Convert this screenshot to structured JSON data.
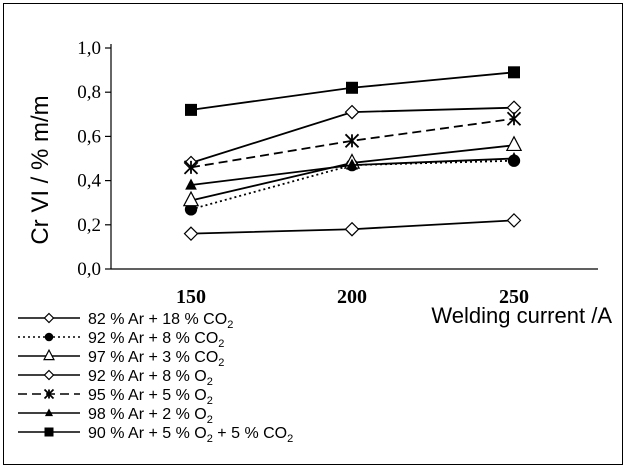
{
  "chart_data": {
    "type": "line",
    "xlabel": "Welding current /A",
    "ylabel": "Cr VI / % m/m",
    "x": [
      150,
      200,
      250
    ],
    "x_tick_labels": [
      "150",
      "200",
      "250"
    ],
    "ylim": [
      0,
      1.0
    ],
    "y_ticks": [
      0.0,
      0.2,
      0.4,
      0.6,
      0.8,
      1.0
    ],
    "y_tick_labels": [
      "0,0",
      "0,2",
      "0,4",
      "0,6",
      "0,8",
      "1,0"
    ],
    "grid": false,
    "legend_position": "bottom-left",
    "series": [
      {
        "name": "82 % Ar + 18 % CO",
        "sub": "2",
        "suffix": "",
        "marker": "diamond-open",
        "dash": "solid",
        "values": [
          0.16,
          0.18,
          0.22
        ]
      },
      {
        "name": "92 % Ar + 8 % CO",
        "sub": "2",
        "suffix": "",
        "marker": "circle-filled",
        "dash": "dotted",
        "values": [
          0.27,
          0.47,
          0.49
        ]
      },
      {
        "name": "97 % Ar + 3 % CO",
        "sub": "2",
        "suffix": "",
        "marker": "triangle-open",
        "dash": "solid",
        "values": [
          0.31,
          0.48,
          0.56
        ]
      },
      {
        "name": "92 % Ar + 8 % O",
        "sub": "2",
        "suffix": "",
        "marker": "diamond-open",
        "dash": "solid",
        "values": [
          0.48,
          0.71,
          0.73
        ]
      },
      {
        "name": "95 % Ar + 5 % O",
        "sub": "2",
        "suffix": "",
        "marker": "star",
        "dash": "dashed",
        "values": [
          0.46,
          0.58,
          0.68
        ]
      },
      {
        "name": "98 % Ar + 2 % O",
        "sub": "2",
        "suffix": "",
        "marker": "triangle-filled",
        "dash": "solid",
        "values": [
          0.38,
          0.47,
          0.5
        ]
      },
      {
        "name": "90 % Ar + 5 % O",
        "sub": "2",
        "suffix": " + 5 % CO",
        "suffix_sub": "2",
        "marker": "square-filled",
        "dash": "solid",
        "values": [
          0.72,
          0.82,
          0.89
        ]
      }
    ]
  }
}
